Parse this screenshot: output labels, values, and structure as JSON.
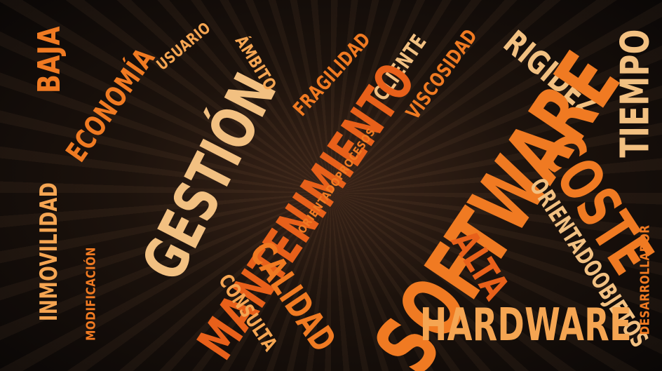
{
  "colors": {
    "orange": "#f07a22",
    "light_orange": "#f5a552",
    "pale": "#f2c081",
    "deep_orange": "#e8601a"
  },
  "words": [
    {
      "key": "baja",
      "text": "BAJA",
      "color": "#f07a22"
    },
    {
      "key": "economia",
      "text": "ECONOMÍA",
      "color": "#f07a22"
    },
    {
      "key": "usuario",
      "text": "USUARIO",
      "color": "#f5a552"
    },
    {
      "key": "gestion",
      "text": "GESTIÓN",
      "color": "#f2c081"
    },
    {
      "key": "ambito",
      "text": "ÁMBITO",
      "color": "#f5a552"
    },
    {
      "key": "fragilidad",
      "text": "FRAGILIDAD",
      "color": "#f07a22"
    },
    {
      "key": "cliente",
      "text": "CLIENTE",
      "color": "#f2c081"
    },
    {
      "key": "viscosidad",
      "text": "VISCOSIDAD",
      "color": "#f07a22"
    },
    {
      "key": "rigidez",
      "text": "RIGIDEZ",
      "color": "#f2c081"
    },
    {
      "key": "tiempo",
      "text": "TIEMPO",
      "color": "#f2c081"
    },
    {
      "key": "mantenimiento",
      "text": "MANTENIMIENTO",
      "color": "#e8601a"
    },
    {
      "key": "software",
      "text": "SOFTWARE",
      "color": "#f07a22"
    },
    {
      "key": "coste",
      "text": "COSTE",
      "color": "#f07a22"
    },
    {
      "key": "orientadoprocesos",
      "text": "ORIENTADOPROCESOS",
      "color": "#f07a22"
    },
    {
      "key": "inmovilidad",
      "text": "INMOVILIDAD",
      "color": "#f5a552"
    },
    {
      "key": "modificacion",
      "text": "MODIFICACIÓN",
      "color": "#f07a22"
    },
    {
      "key": "calidad",
      "text": "CALIDAD",
      "color": "#f07a22"
    },
    {
      "key": "consulta",
      "text": "CONSULTA",
      "color": "#f5a552"
    },
    {
      "key": "alta",
      "text": "ALTA",
      "color": "#e8601a"
    },
    {
      "key": "orientadoobjetos",
      "text": "ORIENTADOOBJETOS",
      "color": "#f2c081"
    },
    {
      "key": "desarrollador",
      "text": "DESARROLLADOR",
      "color": "#f07a22"
    },
    {
      "key": "hardware",
      "text": "HARDWARE",
      "color": "#f5a552"
    }
  ]
}
